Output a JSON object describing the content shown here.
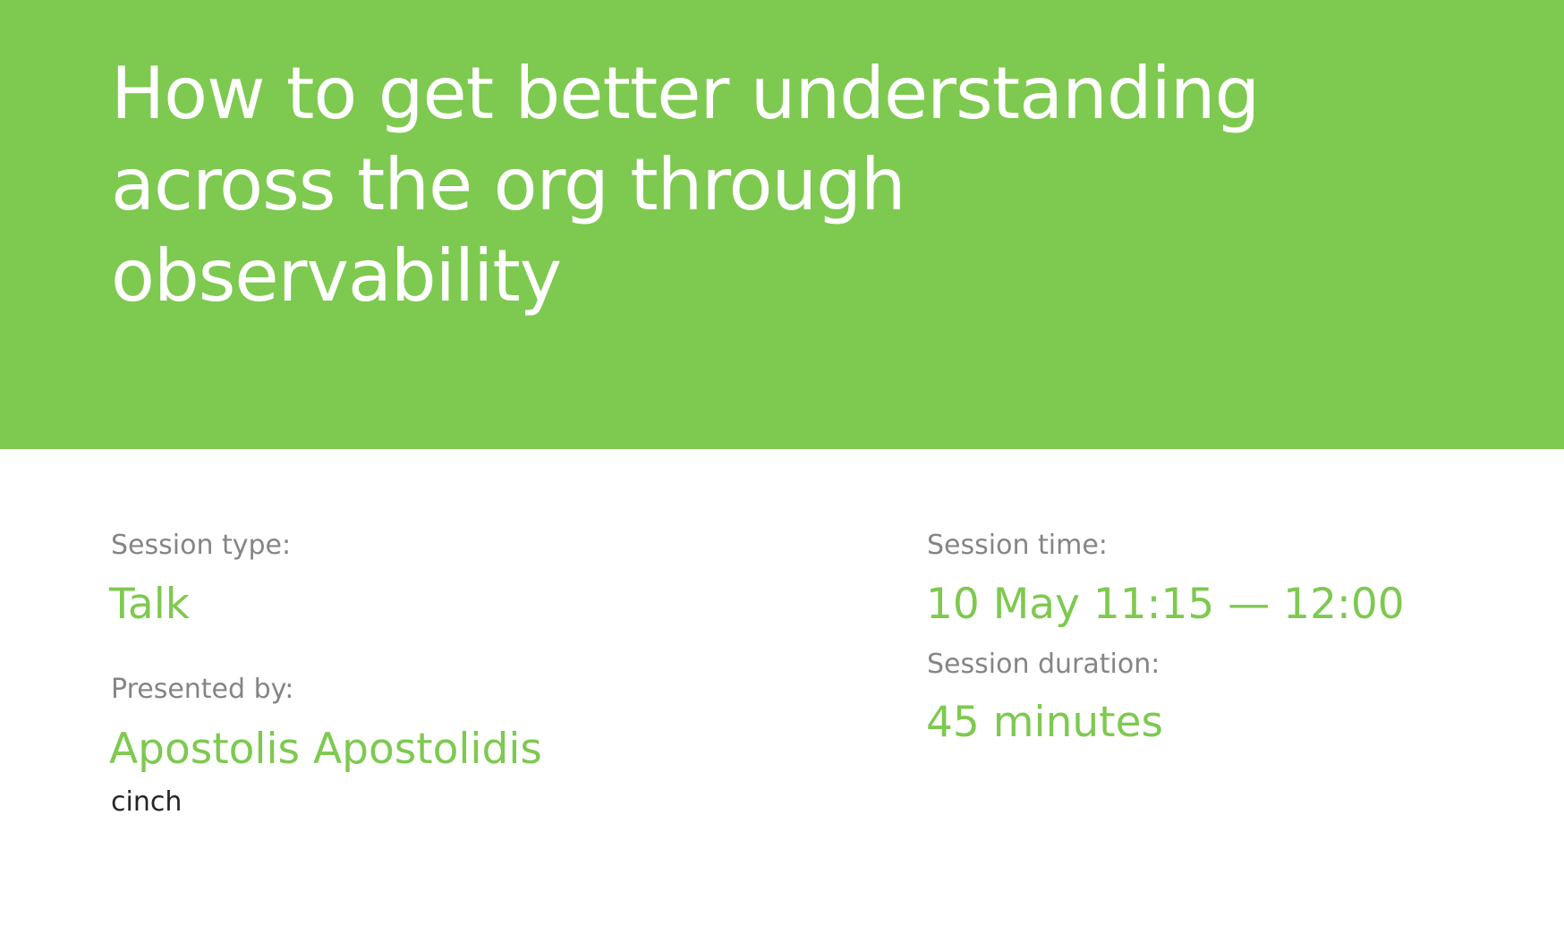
{
  "colors": {
    "accent": "#7ec950",
    "label_text": "#858585",
    "body_text": "#262626",
    "header_text": "#ffffff"
  },
  "session": {
    "title_lines": [
      "How to get better understanding",
      "across the org through",
      "observability"
    ],
    "type_label": "Session type:",
    "type_value": "Talk",
    "presenter_label": "Presented by:",
    "presenter_name": "Apostolis Apostolidis",
    "presenter_company": "cinch",
    "time_label": "Session time:",
    "time_value": "10 May 11:15 — 12:00",
    "duration_label": "Session duration:",
    "duration_value": "45 minutes"
  }
}
